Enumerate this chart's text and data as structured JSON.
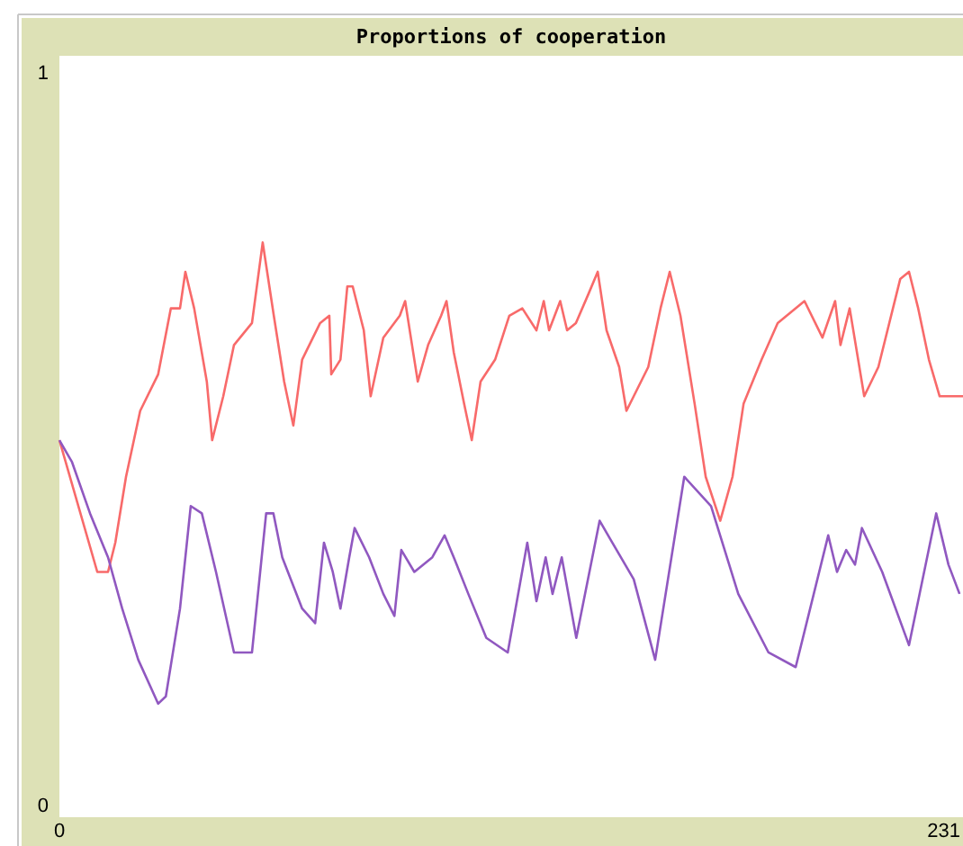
{
  "chart_data": {
    "type": "line",
    "title": "Proportions of cooperation",
    "xlim": [
      0,
      236
    ],
    "ylim": [
      -0.015,
      1.025
    ],
    "xticks": [
      0,
      231
    ],
    "yticks": [
      0,
      1
    ],
    "grid": false,
    "marker": "none",
    "line_style": "solid",
    "series": [
      {
        "color": "#f86a6a",
        "x": [
          0,
          9.9,
          12.7,
          14.6,
          17.4,
          21.1,
          25.8,
          29.1,
          31.5,
          32.9,
          35.2,
          38.5,
          39.9,
          42.8,
          45.6,
          50.3,
          53.1,
          56,
          58.7,
          61.1,
          63.4,
          68.1,
          70.5,
          71,
          73.4,
          75.2,
          76.6,
          79.5,
          81.3,
          84.6,
          88.9,
          90.3,
          92.7,
          93.6,
          96.3,
          99.7,
          101.1,
          103,
          105.7,
          107.7,
          110,
          113.8,
          117.5,
          120.9,
          124.6,
          126.5,
          127.9,
          130.8,
          132.6,
          134.9,
          138.2,
          140.6,
          142.9,
          146.2,
          148.1,
          150,
          153.8,
          157,
          159.4,
          162.2,
          165.9,
          168.8,
          172.6,
          175.8,
          178.7,
          183.4,
          187.6,
          194.6,
          199.3,
          202.6,
          204,
          206.4,
          210.2,
          213.9,
          219.6,
          221.9,
          224.3,
          227.1,
          229.9,
          236
        ],
        "values": [
          0.5,
          0.32,
          0.32,
          0.36,
          0.45,
          0.54,
          0.59,
          0.68,
          0.68,
          0.73,
          0.68,
          0.58,
          0.5,
          0.56,
          0.63,
          0.66,
          0.77,
          0.67,
          0.58,
          0.52,
          0.61,
          0.66,
          0.67,
          0.59,
          0.61,
          0.71,
          0.71,
          0.65,
          0.56,
          0.64,
          0.67,
          0.69,
          0.61,
          0.58,
          0.63,
          0.67,
          0.69,
          0.62,
          0.55,
          0.5,
          0.58,
          0.61,
          0.67,
          0.68,
          0.65,
          0.69,
          0.65,
          0.69,
          0.65,
          0.66,
          0.7,
          0.73,
          0.65,
          0.6,
          0.54,
          0.56,
          0.6,
          0.68,
          0.73,
          0.67,
          0.55,
          0.45,
          0.39,
          0.45,
          0.55,
          0.61,
          0.66,
          0.69,
          0.64,
          0.69,
          0.63,
          0.68,
          0.56,
          0.6,
          0.72,
          0.73,
          0.68,
          0.61,
          0.56,
          0.56
        ]
      },
      {
        "color": "#9058c0",
        "x": [
          0,
          3.3,
          8,
          12.7,
          16.4,
          20.6,
          25.8,
          27.8,
          31.5,
          34.3,
          37.2,
          40.9,
          45.6,
          50.3,
          54,
          55.9,
          58.2,
          63.4,
          66.8,
          69.1,
          71.4,
          73.4,
          75.7,
          77.1,
          80.9,
          84.6,
          87.5,
          89.3,
          92.7,
          97.4,
          100.6,
          103,
          106.8,
          111.5,
          117.1,
          122.2,
          124.6,
          127,
          128.8,
          131.2,
          135,
          141.1,
          144.4,
          150,
          155.6,
          163.2,
          170.2,
          177.3,
          185.2,
          192.3,
          200.8,
          203.1,
          205.5,
          207.8,
          209.6,
          214.9,
          221.9,
          229,
          232.2,
          235.1
        ],
        "values": [
          0.5,
          0.47,
          0.4,
          0.34,
          0.27,
          0.2,
          0.14,
          0.15,
          0.27,
          0.41,
          0.4,
          0.32,
          0.21,
          0.21,
          0.4,
          0.4,
          0.34,
          0.27,
          0.25,
          0.36,
          0.32,
          0.27,
          0.34,
          0.38,
          0.34,
          0.29,
          0.26,
          0.35,
          0.32,
          0.34,
          0.37,
          0.34,
          0.29,
          0.23,
          0.21,
          0.36,
          0.28,
          0.34,
          0.29,
          0.34,
          0.23,
          0.39,
          0.36,
          0.31,
          0.2,
          0.45,
          0.41,
          0.29,
          0.21,
          0.19,
          0.37,
          0.32,
          0.35,
          0.33,
          0.38,
          0.32,
          0.22,
          0.4,
          0.33,
          0.29
        ]
      }
    ]
  }
}
